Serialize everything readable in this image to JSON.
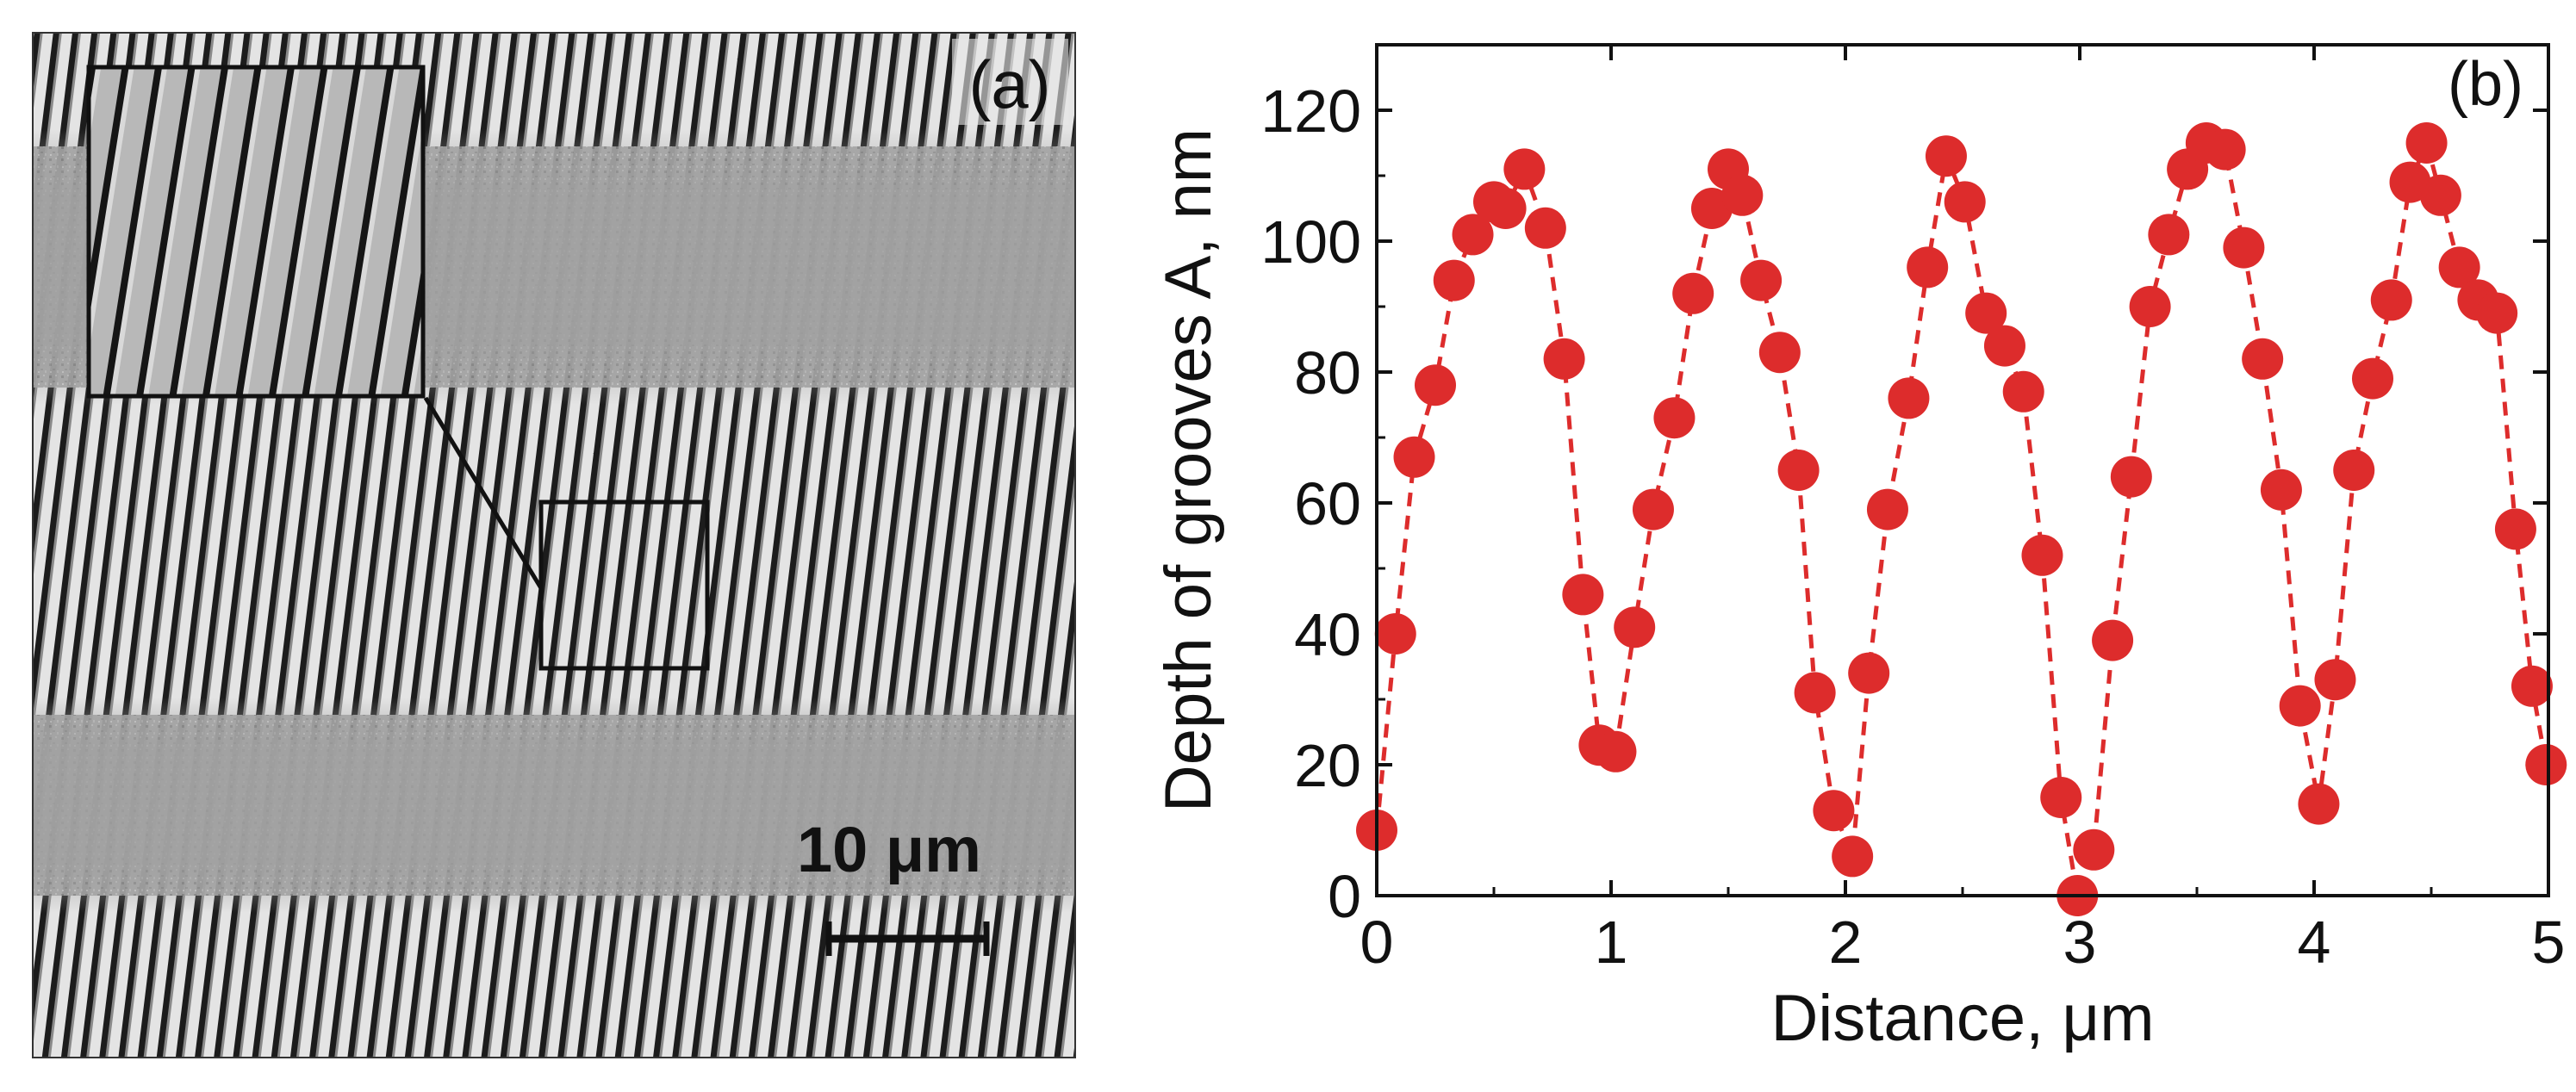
{
  "panel_a": {
    "label": "(a)",
    "scale_bar_label": "10 μm",
    "description_colors": {
      "background": "#9a9a9a",
      "stripe_dark": "#1a1a1a",
      "stripe_light": "#e6e6e6"
    }
  },
  "chart_data": {
    "type": "scatter",
    "panel_label": "(b)",
    "title": "",
    "xlabel": "Distance, μm",
    "ylabel": "Depth of grooves A, nm",
    "xlim": [
      0,
      5
    ],
    "ylim": [
      0,
      130
    ],
    "xticks": [
      0,
      1,
      2,
      3,
      4,
      5
    ],
    "yticks": [
      0,
      20,
      40,
      60,
      80,
      100,
      120
    ],
    "grid": false,
    "marker_color": "#dd2c2c",
    "line_style": "dashed",
    "series": [
      {
        "name": "Depth of grooves A",
        "x": [
          0.0,
          0.08,
          0.16,
          0.25,
          0.33,
          0.41,
          0.5,
          0.55,
          0.63,
          0.72,
          0.8,
          0.88,
          0.95,
          1.02,
          1.1,
          1.18,
          1.27,
          1.35,
          1.43,
          1.5,
          1.56,
          1.64,
          1.72,
          1.8,
          1.87,
          1.95,
          2.03,
          2.1,
          2.18,
          2.27,
          2.35,
          2.43,
          2.51,
          2.6,
          2.68,
          2.76,
          2.84,
          2.92,
          2.99,
          3.06,
          3.14,
          3.22,
          3.3,
          3.38,
          3.46,
          3.54,
          3.62,
          3.7,
          3.78,
          3.86,
          3.94,
          4.02,
          4.09,
          4.17,
          4.25,
          4.33,
          4.41,
          4.48,
          4.54,
          4.62,
          4.7,
          4.78,
          4.86,
          4.93,
          4.99
        ],
        "y": [
          10,
          40,
          67,
          78,
          94,
          101,
          106,
          105,
          111,
          102,
          82,
          46,
          23,
          22,
          41,
          59,
          73,
          92,
          105,
          111,
          107,
          94,
          83,
          65,
          31,
          13,
          6,
          34,
          59,
          76,
          96,
          113,
          106,
          89,
          84,
          77,
          52,
          15,
          0,
          7,
          39,
          64,
          90,
          101,
          111,
          115,
          114,
          99,
          82,
          62,
          29,
          14,
          33,
          65,
          79,
          91,
          109,
          115,
          107,
          96,
          91,
          89,
          56,
          32,
          20
        ]
      }
    ]
  }
}
